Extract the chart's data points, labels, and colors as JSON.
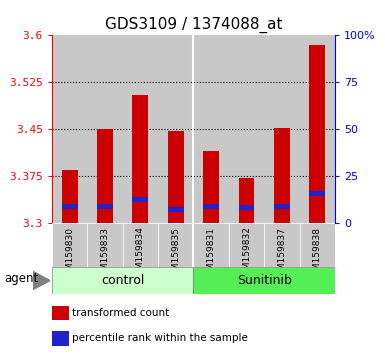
{
  "title": "GDS3109 / 1374088_at",
  "samples": [
    "GSM159830",
    "GSM159833",
    "GSM159834",
    "GSM159835",
    "GSM159831",
    "GSM159832",
    "GSM159837",
    "GSM159838"
  ],
  "red_values": [
    3.385,
    3.45,
    3.505,
    3.447,
    3.415,
    3.372,
    3.452,
    3.585
  ],
  "blue_values": [
    3.327,
    3.327,
    3.337,
    3.322,
    3.327,
    3.325,
    3.327,
    3.347
  ],
  "blue_bar_height": 0.008,
  "y_min": 3.3,
  "y_max": 3.6,
  "y_ticks": [
    3.3,
    3.375,
    3.45,
    3.525,
    3.6
  ],
  "y2_ticks_pct": [
    0,
    25,
    50,
    75,
    100
  ],
  "y2_tick_labels": [
    "0",
    "25",
    "50",
    "75",
    "100%"
  ],
  "bar_width": 0.45,
  "red_color": "#cc0000",
  "blue_color": "#2222cc",
  "col_bg_color": "#c8c8c8",
  "white_bg": "#ffffff",
  "control_bg": "#ccffcc",
  "sunitinib_bg": "#55ee55",
  "group_label_control": "control",
  "group_label_sunitinib": "Sunitinib",
  "agent_label": "agent",
  "legend_red": "transformed count",
  "legend_blue": "percentile rank within the sample",
  "title_fontsize": 11,
  "tick_fontsize": 8,
  "sample_fontsize": 6.5,
  "legend_fontsize": 7.5,
  "group_fontsize": 9
}
